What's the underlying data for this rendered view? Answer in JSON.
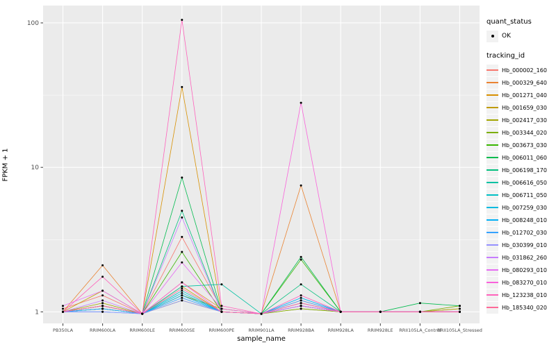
{
  "colors": {
    "figure_bg": "#FFFFFF",
    "panel_bg": "#EBEBEB",
    "grid": "#FFFFFF",
    "legend_key_bg": "#F2F2F2",
    "tick_text": "#4D4D4D",
    "tick_mark": "#333333",
    "axis_text": "#000000"
  },
  "legend": {
    "quant_status": {
      "title": "quant_status",
      "items": [
        {
          "label": "OK",
          "symbol": "filled-point"
        }
      ]
    },
    "tracking_id": {
      "title": "tracking_id"
    }
  },
  "chart_data": {
    "type": "line",
    "title": "",
    "xlabel": "sample_name",
    "ylabel": "FPKM + 1",
    "y_scale": "log10",
    "y_ticks": [
      1,
      10,
      100
    ],
    "y_minor": [
      3.1623,
      31.623
    ],
    "ylim": [
      0.85,
      130
    ],
    "grid": true,
    "legend_position": "right",
    "point_shape": "filled-circle",
    "point_color": "#000000",
    "categories": [
      "PB350LA",
      "RRIM600LA",
      "RRIM600LE",
      "RRIM600SE",
      "RRIM600PE",
      "RRIM901LA",
      "RRIM928BA",
      "RRIM928LA",
      "RRIM928LE",
      "RRII105LA_Control",
      "RRII105LA_Stressed"
    ],
    "series": [
      {
        "name": "Hb_000002_160",
        "color": "#F8766D",
        "values": [
          1.05,
          1.3,
          0.97,
          3.3,
          1.05,
          0.97,
          1.2,
          1.0,
          1.0,
          1.0,
          1.0
        ]
      },
      {
        "name": "Hb_000329_640",
        "color": "#EA8331",
        "values": [
          1.0,
          2.1,
          0.97,
          1.6,
          1.05,
          0.97,
          7.5,
          1.0,
          1.0,
          1.0,
          1.05
        ]
      },
      {
        "name": "Hb_001271_040",
        "color": "#D89000",
        "values": [
          1.0,
          1.1,
          0.97,
          36.0,
          1.0,
          0.97,
          1.1,
          1.0,
          1.0,
          1.0,
          1.0
        ]
      },
      {
        "name": "Hb_001659_030",
        "color": "#C09B00",
        "values": [
          1.0,
          1.4,
          0.97,
          1.5,
          1.0,
          0.97,
          1.05,
          1.0,
          1.0,
          1.0,
          1.0
        ]
      },
      {
        "name": "Hb_002417_030",
        "color": "#A3A500",
        "values": [
          1.0,
          1.15,
          0.97,
          1.3,
          1.05,
          0.97,
          1.1,
          1.0,
          1.0,
          1.0,
          1.05
        ]
      },
      {
        "name": "Hb_003344_020",
        "color": "#7CAE00",
        "values": [
          1.0,
          1.1,
          0.97,
          1.2,
          1.0,
          0.97,
          1.05,
          1.0,
          1.0,
          1.0,
          1.1
        ]
      },
      {
        "name": "Hb_003673_030",
        "color": "#39B600",
        "values": [
          1.0,
          1.05,
          0.97,
          2.6,
          1.0,
          0.97,
          2.3,
          1.0,
          1.0,
          1.0,
          1.0
        ]
      },
      {
        "name": "Hb_006011_060",
        "color": "#00BB4E",
        "values": [
          1.0,
          1.1,
          0.97,
          8.5,
          1.0,
          0.97,
          2.4,
          1.0,
          1.0,
          1.15,
          1.1
        ]
      },
      {
        "name": "Hb_006198_170",
        "color": "#00BF7D",
        "values": [
          1.0,
          1.05,
          0.97,
          5.0,
          1.0,
          0.97,
          1.55,
          1.0,
          1.0,
          1.0,
          1.0
        ]
      },
      {
        "name": "Hb_006616_050",
        "color": "#00C1A3",
        "values": [
          1.0,
          1.05,
          0.97,
          1.5,
          1.55,
          0.97,
          1.1,
          1.0,
          1.0,
          1.0,
          1.0
        ]
      },
      {
        "name": "Hb_006711_050",
        "color": "#00BFC4",
        "values": [
          1.0,
          1.1,
          0.97,
          1.4,
          1.0,
          0.97,
          1.15,
          1.0,
          1.0,
          1.0,
          1.0
        ]
      },
      {
        "name": "Hb_007259_030",
        "color": "#00BAE0",
        "values": [
          1.0,
          1.05,
          0.97,
          1.35,
          1.0,
          0.97,
          1.1,
          1.0,
          1.0,
          1.0,
          1.0
        ]
      },
      {
        "name": "Hb_008248_010",
        "color": "#00B0F6",
        "values": [
          1.0,
          1.0,
          0.97,
          1.3,
          1.0,
          0.97,
          1.25,
          1.0,
          1.0,
          1.0,
          1.0
        ]
      },
      {
        "name": "Hb_012702_030",
        "color": "#35A2FF",
        "values": [
          1.0,
          1.05,
          0.97,
          1.25,
          1.0,
          0.97,
          1.2,
          1.0,
          1.0,
          1.0,
          1.0
        ]
      },
      {
        "name": "Hb_030399_010",
        "color": "#9590FF",
        "values": [
          1.0,
          1.0,
          0.97,
          1.2,
          1.0,
          0.97,
          1.1,
          1.0,
          1.0,
          1.0,
          1.0
        ]
      },
      {
        "name": "Hb_031862_260",
        "color": "#C77CFF",
        "values": [
          1.0,
          1.2,
          0.97,
          4.5,
          1.0,
          0.97,
          1.15,
          1.0,
          1.0,
          1.0,
          1.0
        ]
      },
      {
        "name": "Hb_080293_010",
        "color": "#E76BF3",
        "values": [
          1.1,
          1.4,
          0.97,
          2.2,
          1.05,
          0.97,
          1.1,
          1.0,
          1.0,
          1.0,
          1.0
        ]
      },
      {
        "name": "Hb_083270_010",
        "color": "#FA62DB",
        "values": [
          1.0,
          1.1,
          0.97,
          1.6,
          1.0,
          0.97,
          28.0,
          1.0,
          1.0,
          1.0,
          1.0
        ]
      },
      {
        "name": "Hb_123238_010",
        "color": "#FF62BC",
        "values": [
          1.0,
          1.75,
          0.97,
          105.0,
          1.1,
          0.97,
          1.3,
          1.0,
          1.0,
          1.0,
          1.0
        ]
      },
      {
        "name": "Hb_185340_020",
        "color": "#FF6A98",
        "values": [
          1.0,
          1.1,
          0.97,
          1.45,
          1.0,
          0.97,
          1.15,
          1.0,
          1.0,
          1.0,
          1.0
        ]
      }
    ]
  }
}
